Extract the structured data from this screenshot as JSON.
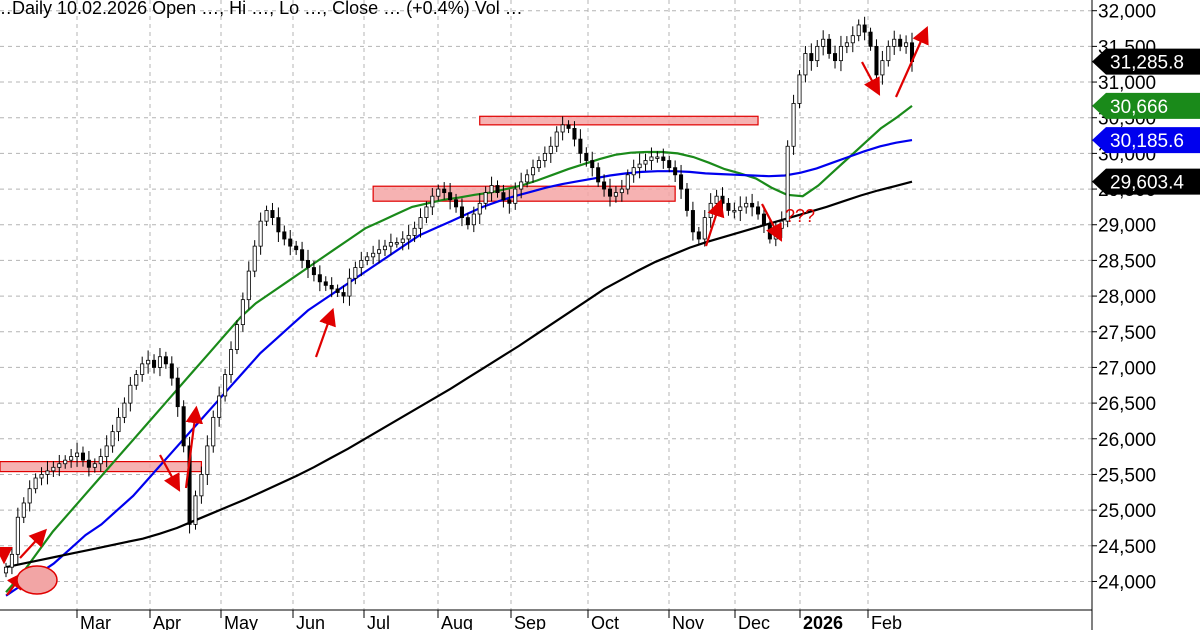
{
  "header": {
    "text": "…Daily 10.02.2026 Open …, Hi …, Lo …, Close … (+0.4%) Vol …"
  },
  "chart_data": {
    "type": "line",
    "price_series_type": "candlestick",
    "title": "",
    "xlabel": "",
    "ylabel": "",
    "ylim": [
      23600,
      32150
    ],
    "y_ticks": [
      24000,
      24500,
      25000,
      25500,
      26000,
      26500,
      27000,
      27500,
      28000,
      28500,
      29000,
      29500,
      30000,
      30500,
      31000,
      31500,
      32000
    ],
    "y_tick_labels": [
      "24,000",
      "24,500",
      "25,000",
      "25,500",
      "26,000",
      "26,500",
      "27,000",
      "27,500",
      "28,000",
      "28,500",
      "29,000",
      "29,500",
      "30,000",
      "30,500",
      "31,000",
      "31,500",
      "32,000"
    ],
    "x_tick_labels": [
      "Mar",
      "Apr",
      "May",
      "Jun",
      "Jul",
      "Aug",
      "Sep",
      "Oct",
      "Nov",
      "Dec",
      "2026",
      "Feb"
    ],
    "grid": true,
    "price_tags": [
      {
        "label": "31,285.8",
        "value": 31285.8,
        "color": "#000000",
        "text_color": "#ffffff"
      },
      {
        "label": "30,666",
        "value": 30666,
        "color": "#1a8a1a",
        "text_color": "#ffffff"
      },
      {
        "label": "30,185.6",
        "value": 30185.6,
        "color": "#0000ee",
        "text_color": "#ffffff"
      },
      {
        "label": "29,603.4",
        "value": 29603.4,
        "color": "#000000",
        "text_color": "#ffffff"
      }
    ],
    "series": [
      {
        "key": "close",
        "values": [
          24200,
          24380,
          24900,
          25100,
          25300,
          25450,
          25500,
          25550,
          25600,
          25650,
          25700,
          25750,
          25800,
          25700,
          25600,
          25650,
          25750,
          25900,
          26100,
          26300,
          26500,
          26750,
          26900,
          27050,
          27100,
          27000,
          27150,
          27050,
          26850,
          26450,
          25900,
          24800,
          25200,
          25500,
          25900,
          26300,
          26600,
          26900,
          27250,
          27600,
          27950,
          28350,
          28700,
          29050,
          29200,
          29100,
          28900,
          28800,
          28700,
          28650,
          28500,
          28400,
          28300,
          28200,
          28150,
          28100,
          28050,
          28000,
          28250,
          28400,
          28500,
          28550,
          28600,
          28650,
          28700,
          28750,
          28750,
          28800,
          28850,
          28950,
          29100,
          29250,
          29400,
          29500,
          29450,
          29350,
          29250,
          29100,
          29000,
          29150,
          29300,
          29450,
          29550,
          29450,
          29350,
          29300,
          29500,
          29600,
          29700,
          29800,
          29900,
          30000,
          30100,
          30300,
          30400,
          30350,
          30200,
          30000,
          29900,
          29800,
          29600,
          29500,
          29400,
          29450,
          29500,
          29700,
          29800,
          29850,
          29900,
          29950,
          29950,
          29900,
          29800,
          29700,
          29500,
          29200,
          28900,
          28800,
          29100,
          29300,
          29400,
          29300,
          29200,
          29200,
          29250,
          29300,
          29250,
          29150,
          29000,
          28800,
          28950,
          29050,
          30100,
          30700,
          31100,
          31400,
          31300,
          31500,
          31600,
          31400,
          31300,
          31500,
          31550,
          31650,
          31800,
          31700,
          31500,
          31100,
          31300,
          31500,
          31600,
          31500,
          31550,
          31286
        ]
      },
      {
        "name": "",
        "key": "sma_fast",
        "color": "#1a8a1a",
        "values": [
          23850,
          24100,
          24400,
          24700,
          24950,
          25200,
          25450,
          25700,
          25950,
          26200,
          26450,
          26700,
          26950,
          27200,
          27450,
          27700,
          27900,
          28050,
          28200,
          28350,
          28500,
          28650,
          28800,
          28950,
          29050,
          29150,
          29250,
          29300,
          29350,
          29380,
          29420,
          29450,
          29500,
          29550,
          29620,
          29700,
          29780,
          29850,
          29920,
          29980,
          30010,
          30020,
          30020,
          30000,
          29950,
          29870,
          29780,
          29720,
          29650,
          29520,
          29420,
          29400,
          29550,
          29750,
          29950,
          30150,
          30350,
          30500,
          30666
        ]
      },
      {
        "name": "",
        "key": "sma_mid",
        "color": "#0000ee",
        "values": [
          23800,
          23950,
          24100,
          24250,
          24450,
          24650,
          24800,
          25000,
          25200,
          25450,
          25700,
          25950,
          26200,
          26450,
          26700,
          26950,
          27200,
          27400,
          27600,
          27800,
          27950,
          28100,
          28250,
          28400,
          28550,
          28700,
          28850,
          28950,
          29050,
          29150,
          29250,
          29330,
          29400,
          29460,
          29520,
          29570,
          29610,
          29650,
          29690,
          29720,
          29740,
          29750,
          29750,
          29740,
          29720,
          29710,
          29700,
          29690,
          29680,
          29690,
          29730,
          29790,
          29870,
          29950,
          30030,
          30100,
          30150,
          30186
        ]
      },
      {
        "name": "",
        "key": "sma_slow",
        "color": "#000000",
        "values": [
          24200,
          24250,
          24300,
          24350,
          24400,
          24450,
          24500,
          24550,
          24600,
          24670,
          24750,
          24850,
          24950,
          25050,
          25150,
          25260,
          25370,
          25480,
          25600,
          25730,
          25860,
          26000,
          26140,
          26280,
          26420,
          26560,
          26700,
          26850,
          27000,
          27150,
          27300,
          27460,
          27620,
          27780,
          27940,
          28100,
          28230,
          28360,
          28480,
          28580,
          28680,
          28760,
          28830,
          28900,
          28970,
          29040,
          29110,
          29180,
          29250,
          29330,
          29410,
          29480,
          29540,
          29603
        ]
      }
    ],
    "zones": [
      {
        "x_from": 0,
        "x_to": 33,
        "y_from": 25540,
        "y_to": 25680
      },
      {
        "x_from": 62,
        "x_to": 113,
        "y_from": 29330,
        "y_to": 29540
      },
      {
        "x_from": 80,
        "x_to": 127,
        "y_from": 30400,
        "y_to": 30520
      }
    ],
    "annotations": [
      {
        "text": "???"
      }
    ],
    "colors": {
      "up": "#ffffff",
      "down": "#000000",
      "arrow": "#e00000",
      "zone_fill": "#f5a5a5",
      "zone_stroke": "#e00000"
    }
  }
}
